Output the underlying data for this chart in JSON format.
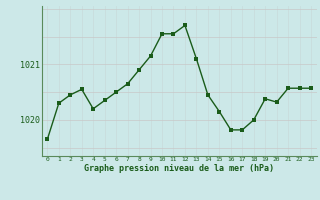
{
  "x": [
    0,
    1,
    2,
    3,
    4,
    5,
    6,
    7,
    8,
    9,
    10,
    11,
    12,
    13,
    14,
    15,
    16,
    17,
    18,
    19,
    20,
    21,
    22,
    23
  ],
  "y": [
    1019.65,
    1020.3,
    1020.45,
    1020.55,
    1020.2,
    1020.35,
    1020.5,
    1020.65,
    1020.9,
    1021.15,
    1021.55,
    1021.55,
    1021.7,
    1021.1,
    1020.45,
    1020.15,
    1019.82,
    1019.82,
    1020.0,
    1020.38,
    1020.32,
    1020.57,
    1020.57,
    1020.57
  ],
  "line_color": "#1a5c1a",
  "marker_color": "#1a5c1a",
  "bg_color": "#cce8e8",
  "grid_color_v": "#c8dada",
  "grid_color_h": "#c8c8c8",
  "axis_label_color": "#1a5c1a",
  "xlabel": "Graphe pression niveau de la mer (hPa)",
  "ytick_labels": [
    "1020",
    "1021"
  ],
  "ytick_values": [
    1020.0,
    1021.0
  ],
  "ylim": [
    1019.35,
    1022.05
  ],
  "xlim": [
    -0.5,
    23.5
  ],
  "marker_size": 2.5,
  "line_width": 1.0,
  "spine_color": "#5a8a5a",
  "h_grid_positions": [
    1019.5,
    1020.0,
    1020.5,
    1021.0,
    1021.5,
    1022.0
  ]
}
